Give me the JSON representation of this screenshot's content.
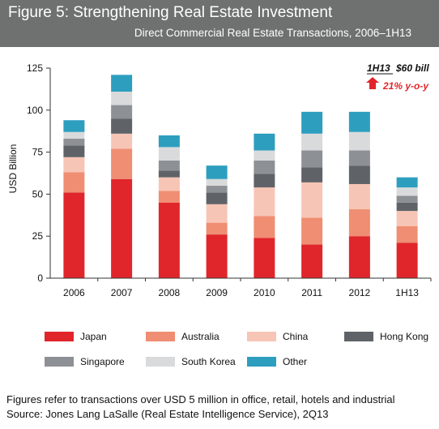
{
  "header": {
    "title": "Figure 5: Strengthening Real Estate Investment",
    "subtitle": "Direct Commercial Real Estate Transactions, 2006–1H13"
  },
  "annotation": {
    "label": "1H13",
    "value": "$60 bill",
    "change": "21% y-o-y",
    "color": "#e0262b"
  },
  "chart_data": {
    "type": "bar",
    "stacked": true,
    "categories": [
      "2006",
      "2007",
      "2008",
      "2009",
      "2010",
      "2011",
      "2012",
      "1H13"
    ],
    "ylabel": "USD Billion",
    "ylim": [
      0,
      125
    ],
    "yticks": [
      0,
      25,
      50,
      75,
      100,
      125
    ],
    "legend_position": "bottom",
    "series": [
      {
        "name": "Japan",
        "color": "#e0262b",
        "values": [
          51,
          59,
          45,
          26,
          24,
          20,
          25,
          21
        ]
      },
      {
        "name": "Australia",
        "color": "#ef8e72",
        "values": [
          12,
          18,
          7,
          7,
          13,
          16,
          16,
          10
        ]
      },
      {
        "name": "China",
        "color": "#f7c5b5",
        "values": [
          9,
          9,
          8,
          11,
          17,
          21,
          15,
          9
        ]
      },
      {
        "name": "Hong Kong",
        "color": "#5f6368",
        "values": [
          7,
          9,
          4,
          7,
          8,
          9,
          11,
          5
        ]
      },
      {
        "name": "Singapore",
        "color": "#8d9195",
        "values": [
          4,
          8,
          6,
          4,
          8,
          10,
          9,
          4
        ]
      },
      {
        "name": "South Korea",
        "color": "#d9dadb",
        "values": [
          4,
          8,
          8,
          4,
          6,
          10,
          11,
          5
        ]
      },
      {
        "name": "Other",
        "color": "#2e9ebf",
        "values": [
          7,
          10,
          7,
          8,
          10,
          13,
          12,
          6
        ]
      }
    ]
  },
  "footer": {
    "note": "Figures refer to transactions over USD 5 million in office, retail, hotels and industrial",
    "source": "Source:  Jones Lang LaSalle (Real Estate Intelligence Service), 2Q13"
  }
}
